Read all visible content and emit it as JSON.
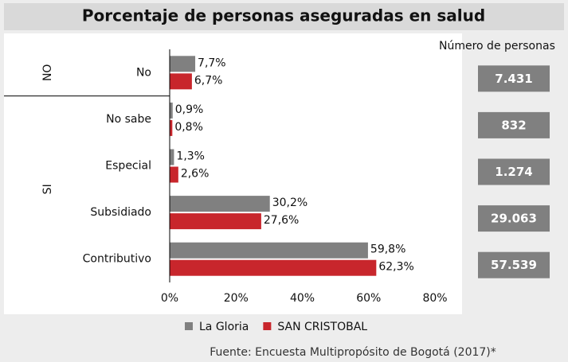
{
  "chart_data": {
    "type": "bar",
    "orientation": "horizontal",
    "title": "Porcentaje de personas aseguradas en salud",
    "categories": [
      "No",
      "No sabe",
      "Especial",
      "Subsidiado",
      "Contributivo"
    ],
    "groups": [
      {
        "name": "NO",
        "size": 1
      },
      {
        "name": "SI",
        "size": 4
      }
    ],
    "series": [
      {
        "name": "La Gloria",
        "color": "#808080",
        "values": [
          7.7,
          0.9,
          1.3,
          30.2,
          59.8
        ],
        "value_labels": [
          "7,7%",
          "0,9%",
          "1,3%",
          "30,2%",
          "59,8%"
        ]
      },
      {
        "name": "SAN CRISTOBAL",
        "color": "#c8262c",
        "values": [
          6.7,
          0.8,
          2.6,
          27.6,
          62.3
        ],
        "value_labels": [
          "6,7%",
          "0,8%",
          "2,6%",
          "27,6%",
          "62,3%"
        ]
      }
    ],
    "xlim": [
      0,
      80
    ],
    "xticks": [
      {
        "value": 0,
        "label": "0%"
      },
      {
        "value": 20,
        "label": "20%"
      },
      {
        "value": 40,
        "label": "40%"
      },
      {
        "value": 60,
        "label": "60%"
      },
      {
        "value": 80,
        "label": "80%"
      }
    ],
    "persons": {
      "title": "Número de personas",
      "values": [
        7431,
        832,
        1274,
        29063,
        57539
      ],
      "value_labels": [
        "7.431",
        "832",
        "1.274",
        "29.063",
        "57.539"
      ]
    },
    "legend": "bottom",
    "source": "Fuente: Encuesta Multipropósito de Bogotá (2017)*"
  }
}
